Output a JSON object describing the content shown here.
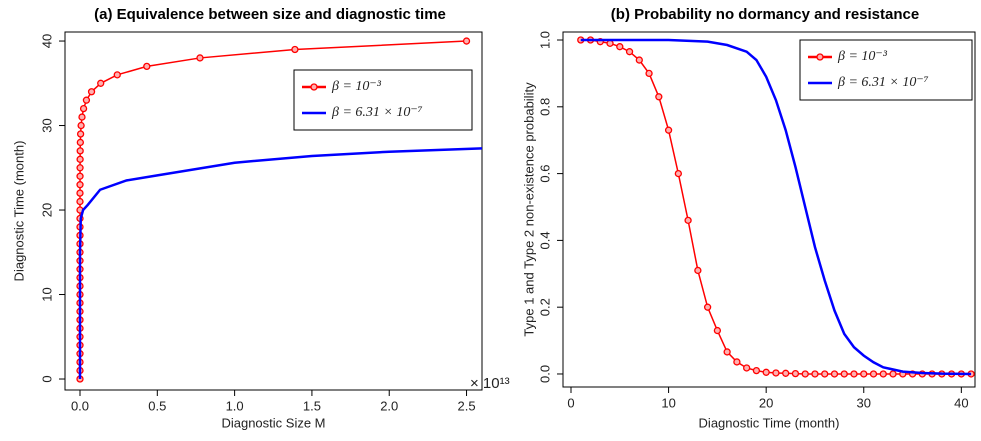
{
  "chart_data": [
    {
      "type": "line",
      "title": "(a) Equivalence between size and diagnostic time",
      "x_label": "Diagnostic Size M",
      "y_label": "Diagnostic Time (month)",
      "x_axis_multiplier": "× 10¹³",
      "xlim": [
        -0.097,
        2.6
      ],
      "ylim": [
        -1.3,
        41.07
      ],
      "xticks": [
        {
          "value": 0,
          "label": "0.0"
        },
        0.5,
        {
          "value": 1,
          "label": "1.0"
        },
        1.5,
        {
          "value": 2,
          "label": "2.0"
        },
        2.5
      ],
      "yticks": [
        0,
        10,
        20,
        30,
        40
      ],
      "legend": "top right",
      "series": [
        {
          "name": "β = 10⁻³",
          "color": "#ff0000",
          "markers": true,
          "x": [
            0,
            0,
            0,
            0,
            0,
            0,
            0,
            0,
            0,
            0,
            0,
            0,
            0,
            0,
            0,
            0,
            0,
            0,
            0,
            0,
            0,
            0,
            0,
            0.0001,
            0.0002,
            0.0004,
            0.0007,
            0.0012,
            0.0022,
            0.004,
            0.0072,
            0.0129,
            0.0232,
            0.0416,
            0.0747,
            0.134,
            0.241,
            0.432,
            0.776,
            1.39,
            2.5
          ],
          "values": [
            0,
            1,
            2,
            3,
            4,
            5,
            6,
            7,
            8,
            9,
            10,
            11,
            12,
            13,
            14,
            15,
            16,
            17,
            18,
            19,
            20,
            21,
            22,
            23,
            24,
            25,
            26,
            27,
            28,
            29,
            30,
            31,
            32,
            33,
            34,
            35,
            36,
            37,
            38,
            39,
            40
          ]
        },
        {
          "name": "β = 6.31 × 10⁻⁷",
          "color": "#0000ff",
          "markers": false,
          "x": [
            0,
            0,
            0.005,
            0.02,
            0.05,
            0.13,
            0.3,
            0.5,
            1.0,
            1.5,
            2.0,
            2.6
          ],
          "values": [
            0,
            15,
            19,
            20,
            20.6,
            22.4,
            23.5,
            24.1,
            25.6,
            26.4,
            26.9,
            27.3
          ]
        }
      ]
    },
    {
      "type": "line",
      "title": "(b) Probability no  dormancy and resistance",
      "x_label": "Diagnostic Time (month)",
      "y_label": "Type 1 and Type 2 non-existence probability",
      "xlim": [
        -0.82,
        41.4
      ],
      "ylim": [
        -0.039,
        1.024
      ],
      "xticks": [
        0,
        10,
        20,
        30,
        40
      ],
      "yticks": [
        {
          "value": 0,
          "label": "0.0"
        },
        0.2,
        0.4,
        0.6,
        0.8,
        {
          "value": 1,
          "label": "1.0"
        }
      ],
      "legend": "top right",
      "series": [
        {
          "name": "β = 10⁻³",
          "color": "#ff0000",
          "markers": true,
          "x": [
            1,
            2,
            3,
            4,
            5,
            6,
            7,
            8,
            9,
            10,
            11,
            12,
            13,
            14,
            15,
            16,
            17,
            18,
            19,
            20,
            21,
            22,
            23,
            24,
            25,
            26,
            27,
            28,
            29,
            30,
            31,
            32,
            33,
            34,
            35,
            36,
            37,
            38,
            39,
            40,
            41
          ],
          "values": [
            1.0,
            1.0,
            0.995,
            0.99,
            0.98,
            0.965,
            0.94,
            0.9,
            0.83,
            0.73,
            0.6,
            0.46,
            0.31,
            0.2,
            0.13,
            0.066,
            0.036,
            0.018,
            0.01,
            0.005,
            0.003,
            0.002,
            0.001,
            0,
            0,
            0,
            0,
            0,
            0,
            0,
            0,
            0,
            0,
            0,
            0,
            0,
            0,
            0,
            0,
            0,
            0
          ]
        },
        {
          "name": "β = 6.31 × 10⁻⁷",
          "color": "#0000ff",
          "markers": false,
          "x": [
            1,
            5,
            10,
            14,
            16,
            18,
            19,
            20,
            21,
            22,
            23,
            24,
            25,
            26,
            27,
            28,
            29,
            30,
            31,
            32,
            34,
            36,
            38,
            41
          ],
          "values": [
            1.0,
            1.0,
            1.0,
            0.995,
            0.985,
            0.965,
            0.94,
            0.89,
            0.82,
            0.73,
            0.62,
            0.5,
            0.38,
            0.28,
            0.19,
            0.12,
            0.08,
            0.055,
            0.035,
            0.02,
            0.007,
            0.003,
            0.001,
            0
          ]
        }
      ]
    }
  ]
}
